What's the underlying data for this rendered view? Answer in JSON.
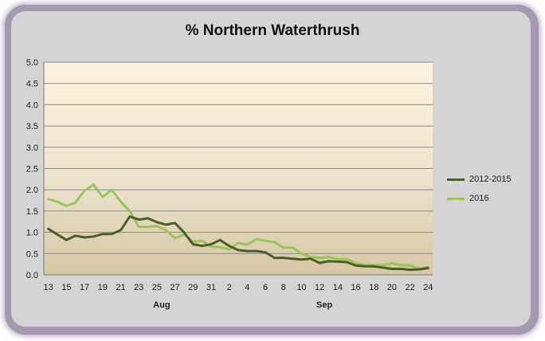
{
  "chart_data": {
    "type": "line",
    "title": "% Northern Waterthrush",
    "xlabel": "",
    "ylabel": "",
    "ylim": [
      0,
      5
    ],
    "yticks": [
      "0.0",
      "0.5",
      "1.0",
      "1.5",
      "2.0",
      "2.5",
      "3.0",
      "3.5",
      "4.0",
      "4.5",
      "5.0"
    ],
    "x": [
      "13",
      "14",
      "15",
      "16",
      "17",
      "18",
      "19",
      "20",
      "21",
      "22",
      "23",
      "24",
      "25",
      "26",
      "27",
      "28",
      "29",
      "30",
      "31",
      "1",
      "2",
      "3",
      "4",
      "5",
      "6",
      "7",
      "8",
      "9",
      "10",
      "11",
      "12",
      "13",
      "14",
      "15",
      "16",
      "17",
      "18",
      "19",
      "20",
      "21",
      "22",
      "23",
      "24"
    ],
    "xtick_labels": [
      "13",
      "15",
      "17",
      "19",
      "21",
      "23",
      "25",
      "27",
      "29",
      "31",
      "2",
      "4",
      "6",
      "8",
      "10",
      "12",
      "14",
      "16",
      "18",
      "20",
      "22",
      "24"
    ],
    "month_labels": [
      {
        "label": "Aug",
        "at_index": 12
      },
      {
        "label": "Sep",
        "at_index": 30
      }
    ],
    "grid": true,
    "legend_position": "right",
    "series": [
      {
        "name": "2012-2015",
        "color": "#4b5e28",
        "values": [
          1.08,
          0.95,
          0.82,
          0.92,
          0.88,
          0.9,
          0.96,
          0.96,
          1.05,
          1.37,
          1.3,
          1.33,
          1.24,
          1.18,
          1.22,
          1.0,
          0.72,
          0.68,
          0.72,
          0.82,
          0.68,
          0.58,
          0.56,
          0.56,
          0.53,
          0.4,
          0.4,
          0.38,
          0.36,
          0.38,
          0.28,
          0.32,
          0.31,
          0.3,
          0.22,
          0.2,
          0.2,
          0.17,
          0.14,
          0.14,
          0.12,
          0.13,
          0.16
        ]
      },
      {
        "name": "2016",
        "color": "#9bc45a",
        "values": [
          1.78,
          1.72,
          1.62,
          1.7,
          1.98,
          2.12,
          1.83,
          2.0,
          1.72,
          1.5,
          1.13,
          1.13,
          1.15,
          1.05,
          0.86,
          0.95,
          0.78,
          0.8,
          0.66,
          0.65,
          0.6,
          0.75,
          0.71,
          0.84,
          0.8,
          0.77,
          0.64,
          0.64,
          0.5,
          0.42,
          0.4,
          0.42,
          0.37,
          0.37,
          0.27,
          0.23,
          0.23,
          0.23,
          0.27,
          0.23,
          0.22,
          0.15,
          0.18
        ]
      }
    ]
  }
}
